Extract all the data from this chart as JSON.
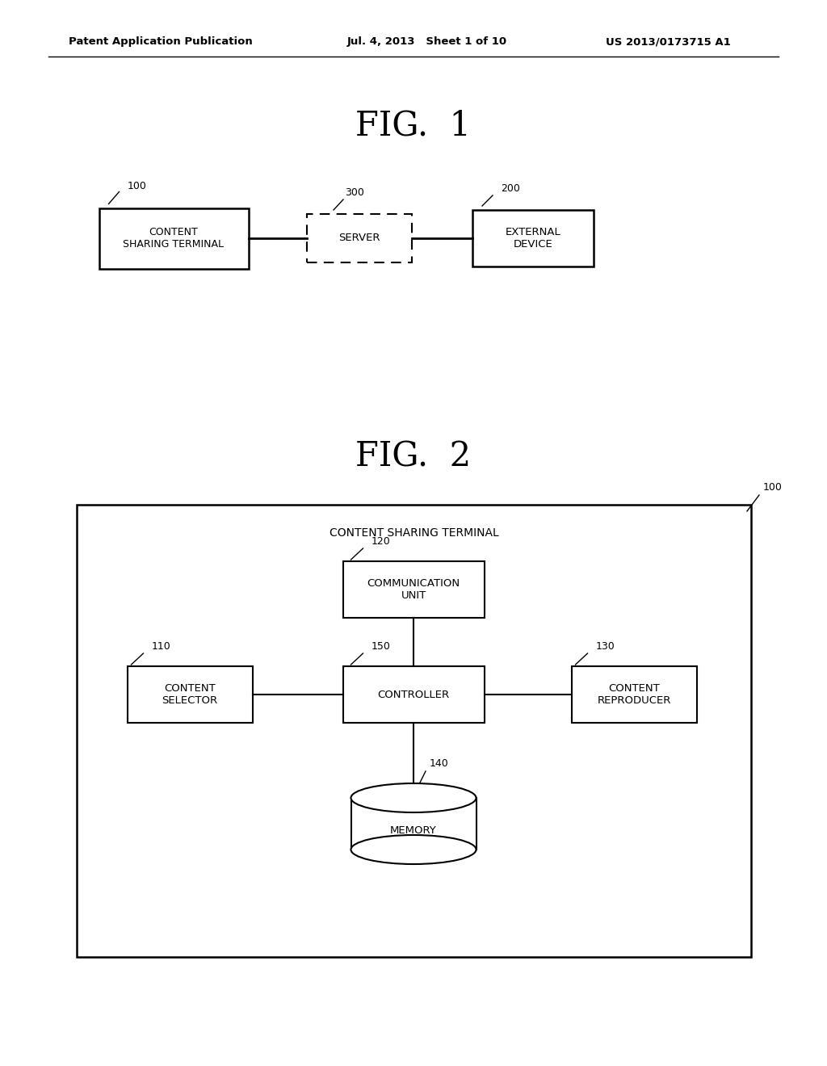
{
  "background_color": "#ffffff",
  "header_left": "Patent Application Publication",
  "header_mid": "Jul. 4, 2013   Sheet 1 of 10",
  "header_right": "US 2013/0173715 A1",
  "fig1_title": "FIG.  1",
  "fig2_title": "FIG.  2",
  "fig1": {
    "box_content_label": "CONTENT\nSHARING TERMINAL",
    "box_content_id": "100",
    "box_server_label": "SERVER",
    "box_server_id": "300",
    "box_external_label": "EXTERNAL\nDEVICE",
    "box_external_id": "200"
  },
  "fig2": {
    "outer_label": "CONTENT SHARING TERMINAL",
    "outer_id": "100",
    "comm_label": "COMMUNICATION\nUNIT",
    "comm_id": "120",
    "ctrl_label": "CONTROLLER",
    "ctrl_id": "150",
    "sel_label": "CONTENT\nSELECTOR",
    "sel_id": "110",
    "repr_label": "CONTENT\nREPRODUCER",
    "repr_id": "130",
    "mem_label": "MEMORY",
    "mem_id": "140"
  }
}
